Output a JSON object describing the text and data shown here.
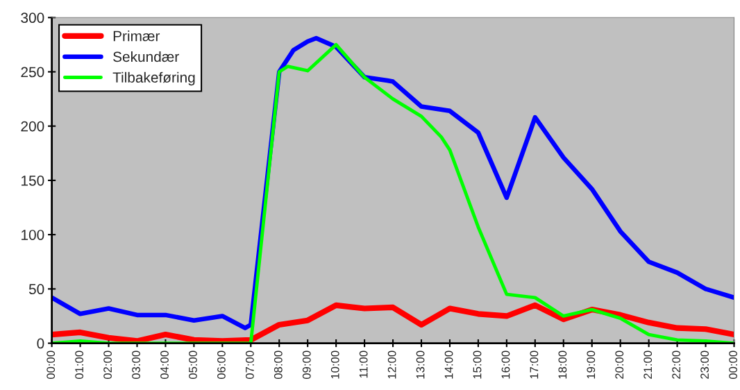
{
  "chart_data": {
    "type": "line",
    "xlim": [
      0,
      24
    ],
    "ylim": [
      0,
      300
    ],
    "yticks": [
      0,
      50,
      100,
      150,
      200,
      250,
      300
    ],
    "xticks": [
      {
        "value": 0,
        "label": "00:00"
      },
      {
        "value": 1,
        "label": "01:00"
      },
      {
        "value": 2,
        "label": "02:00"
      },
      {
        "value": 3,
        "label": "03:00"
      },
      {
        "value": 4,
        "label": "04:00"
      },
      {
        "value": 5,
        "label": "05:00"
      },
      {
        "value": 6,
        "label": "06:00"
      },
      {
        "value": 7,
        "label": "07:00"
      },
      {
        "value": 8,
        "label": "08:00"
      },
      {
        "value": 9,
        "label": "09:00"
      },
      {
        "value": 10,
        "label": "10:00"
      },
      {
        "value": 11,
        "label": "11:00"
      },
      {
        "value": 12,
        "label": "12:00"
      },
      {
        "value": 13,
        "label": "13:00"
      },
      {
        "value": 14,
        "label": "14:00"
      },
      {
        "value": 15,
        "label": "15:00"
      },
      {
        "value": 16,
        "label": "16:00"
      },
      {
        "value": 17,
        "label": "17:00"
      },
      {
        "value": 18,
        "label": "18:00"
      },
      {
        "value": 19,
        "label": "19:00"
      },
      {
        "value": 20,
        "label": "20:00"
      },
      {
        "value": 21,
        "label": "21:00"
      },
      {
        "value": 22,
        "label": "22:00"
      },
      {
        "value": 23,
        "label": "23:00"
      },
      {
        "value": 24,
        "label": "00:00"
      }
    ],
    "series": [
      {
        "name": "Primær",
        "color": "#ff0000",
        "x": [
          0,
          1,
          2,
          3,
          4,
          5,
          6,
          7,
          8,
          9,
          10,
          11,
          12,
          13,
          14,
          15,
          16,
          17,
          18,
          19,
          20,
          21,
          22,
          23,
          24
        ],
        "values": [
          8,
          10,
          5,
          2,
          8,
          3,
          2,
          3,
          17,
          21,
          35,
          32,
          33,
          17,
          32,
          27,
          25,
          35,
          22,
          31,
          26,
          19,
          14,
          13,
          8
        ]
      },
      {
        "name": "Sekundær",
        "color": "#0000ff",
        "x": [
          0,
          1,
          2,
          3,
          4,
          5,
          6,
          6.8,
          7,
          8,
          8.5,
          9,
          9.3,
          10,
          11,
          11.8,
          12,
          13,
          14,
          15,
          16,
          17,
          18,
          19,
          20,
          21,
          22,
          23,
          24
        ],
        "values": [
          42,
          27,
          32,
          26,
          26,
          21,
          25,
          14,
          17,
          250,
          270,
          278,
          281,
          273,
          245,
          242,
          241,
          218,
          214,
          194,
          134,
          208,
          171,
          142,
          103,
          75,
          65,
          50,
          42
        ]
      },
      {
        "name": "Tilbakeføring",
        "color": "#00ff00",
        "x": [
          0,
          1,
          2,
          3,
          4,
          5,
          6,
          7,
          8,
          8.3,
          9,
          10,
          11,
          12,
          13,
          13.7,
          14,
          15,
          16,
          17,
          18,
          19,
          20,
          21,
          22,
          23,
          24
        ],
        "values": [
          0,
          2,
          0,
          0,
          0,
          0,
          0,
          0,
          250,
          255,
          251,
          275,
          245,
          225,
          209,
          190,
          178,
          107,
          45,
          42,
          25,
          31,
          23,
          8,
          3,
          2,
          0
        ]
      }
    ],
    "grid": false,
    "legend": "top left"
  }
}
